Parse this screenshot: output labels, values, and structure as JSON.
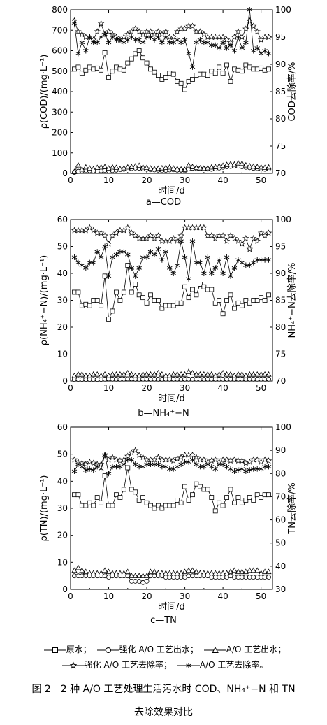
{
  "chart_data": [
    {
      "type": "line",
      "panel_label": "a—COD",
      "xlabel": "时间/d",
      "ylabel": "ρ(COD)/(mg·L⁻¹)",
      "y2label": "COD去除率/%",
      "xlim": [
        0,
        53
      ],
      "xticks": [
        0,
        10,
        20,
        30,
        40,
        50
      ],
      "ylim": [
        0,
        800
      ],
      "yticks": [
        0,
        100,
        200,
        300,
        400,
        500,
        600,
        700,
        800
      ],
      "y2lim": [
        70,
        100
      ],
      "y2ticks": [
        70,
        75,
        80,
        85,
        90,
        95,
        100
      ],
      "x": [
        1,
        2,
        3,
        4,
        5,
        6,
        7,
        8,
        9,
        10,
        11,
        12,
        13,
        14,
        15,
        16,
        17,
        18,
        19,
        20,
        21,
        22,
        23,
        24,
        25,
        26,
        27,
        28,
        29,
        30,
        31,
        32,
        33,
        34,
        35,
        36,
        37,
        38,
        39,
        40,
        41,
        42,
        43,
        44,
        45,
        46,
        47,
        48,
        49,
        50,
        51,
        52
      ],
      "series": [
        {
          "name": "原水",
          "axis": "left",
          "marker": "square",
          "values": [
            510,
            520,
            490,
            505,
            520,
            510,
            515,
            505,
            590,
            470,
            500,
            520,
            510,
            505,
            540,
            560,
            585,
            600,
            565,
            540,
            510,
            495,
            480,
            460,
            470,
            490,
            485,
            450,
            440,
            410,
            450,
            460,
            480,
            485,
            485,
            480,
            500,
            490,
            520,
            490,
            530,
            450,
            510,
            505,
            500,
            530,
            520,
            510,
            510,
            515,
            505,
            510
          ]
        },
        {
          "name": "强化A/O工艺出水",
          "axis": "left",
          "marker": "circle",
          "values": [
            5,
            10,
            12,
            14,
            13,
            12,
            11,
            13,
            15,
            12,
            14,
            16,
            18,
            20,
            22,
            24,
            26,
            25,
            22,
            20,
            18,
            17,
            16,
            14,
            15,
            17,
            18,
            16,
            15,
            14,
            22,
            25,
            24,
            23,
            22,
            21,
            20,
            22,
            26,
            30,
            32,
            34,
            36,
            35,
            32,
            30,
            28,
            25,
            24,
            22,
            20,
            22
          ]
        },
        {
          "name": "A/O工艺出水",
          "axis": "left",
          "marker": "triangle",
          "values": [
            8,
            40,
            20,
            30,
            25,
            22,
            28,
            30,
            32,
            25,
            30,
            28,
            22,
            26,
            30,
            32,
            35,
            38,
            30,
            28,
            25,
            22,
            24,
            26,
            28,
            30,
            25,
            22,
            20,
            18,
            40,
            32,
            28,
            26,
            24,
            26,
            30,
            32,
            36,
            38,
            42,
            46,
            44,
            50,
            48,
            40,
            36,
            34,
            32,
            30,
            28,
            30
          ]
        },
        {
          "name": "强化A/O工艺去除率",
          "axis": "right",
          "marker": "star",
          "values": [
            98,
            96,
            95.5,
            95,
            95,
            94.5,
            96,
            97.5,
            95.5,
            96,
            95.5,
            95,
            94.5,
            95,
            95.5,
            96,
            96.5,
            96,
            95.5,
            96,
            96,
            95.5,
            96,
            95.5,
            96,
            95,
            95,
            96,
            96.5,
            96.5,
            97,
            97,
            96,
            96,
            95.5,
            95,
            95,
            95,
            95,
            95,
            94.5,
            94,
            95,
            96,
            95,
            96.5,
            98,
            97,
            96,
            94.5,
            95,
            95
          ]
        },
        {
          "name": "A/O工艺去除率",
          "axis": "right",
          "marker": "asterisk",
          "values": [
            97.5,
            92,
            94,
            92.5,
            95,
            94,
            94,
            95,
            95.5,
            94,
            95,
            94.5,
            94.5,
            94,
            94.5,
            95,
            94.5,
            94.5,
            94,
            95,
            95,
            94.5,
            95,
            94,
            95,
            94,
            94,
            94.5,
            94,
            94.5,
            92,
            89.5,
            94,
            94.5,
            94,
            94,
            93.5,
            93.5,
            93,
            94,
            93,
            93.5,
            92.5,
            95,
            93,
            94,
            100,
            92.5,
            93,
            92,
            92.5,
            92
          ]
        }
      ]
    },
    {
      "type": "line",
      "panel_label": "b—NH₄⁺−N",
      "xlabel": "时间/d",
      "ylabel": "ρ(NH₄⁺−N)/(mg·L⁻¹)",
      "y2label": "NH₄⁺−N去除率/%",
      "xlim": [
        0,
        53
      ],
      "xticks": [
        0,
        10,
        20,
        30,
        40,
        50
      ],
      "ylim": [
        0,
        60
      ],
      "yticks": [
        0,
        10,
        20,
        30,
        40,
        50,
        60
      ],
      "y2lim": [
        70,
        100
      ],
      "y2ticks": [
        70,
        75,
        80,
        85,
        90,
        95,
        100
      ],
      "x": [
        1,
        2,
        3,
        4,
        5,
        6,
        7,
        8,
        9,
        10,
        11,
        12,
        13,
        14,
        15,
        16,
        17,
        18,
        19,
        20,
        21,
        22,
        23,
        24,
        25,
        26,
        27,
        28,
        29,
        30,
        31,
        32,
        33,
        34,
        35,
        36,
        37,
        38,
        39,
        40,
        41,
        42,
        43,
        44,
        45,
        46,
        47,
        48,
        49,
        50,
        51,
        52
      ],
      "series": [
        {
          "name": "原水",
          "axis": "left",
          "marker": "square",
          "values": [
            33,
            33,
            28,
            28.5,
            28,
            30,
            30,
            28,
            39,
            23,
            26,
            33,
            30,
            33,
            43,
            33,
            36,
            32,
            31,
            29,
            32,
            30,
            30,
            27,
            28,
            28,
            28,
            29,
            29,
            35,
            31,
            34,
            32,
            36,
            35,
            34,
            34,
            29,
            30,
            25,
            30,
            32,
            27,
            29,
            28,
            30,
            29,
            30,
            30,
            31,
            30,
            32
          ]
        },
        {
          "name": "强化A/O工艺出水",
          "axis": "left",
          "marker": "circle",
          "values": [
            0.6,
            0.6,
            0.6,
            0.6,
            0.6,
            0.6,
            0.6,
            0.6,
            0.7,
            0.8,
            0.7,
            0.7,
            0.7,
            0.7,
            0.8,
            0.8,
            0.7,
            0.7,
            0.7,
            0.7,
            0.7,
            0.7,
            0.7,
            0.7,
            0.7,
            0.7,
            0.7,
            0.7,
            0.7,
            0.7,
            0.7,
            0.7,
            0.7,
            0.7,
            0.7,
            0.7,
            0.7,
            0.7,
            0.7,
            0.7,
            0.7,
            0.7,
            0.7,
            0.7,
            0.7,
            0.7,
            0.7,
            0.7,
            0.7,
            0.7,
            0.7,
            0.7
          ]
        },
        {
          "name": "A/O工艺出水",
          "axis": "left",
          "marker": "triangle",
          "values": [
            2,
            2.5,
            2.5,
            2,
            2,
            2.5,
            2.5,
            2,
            2.5,
            2,
            2.5,
            2.5,
            2.5,
            2.5,
            3,
            2.5,
            2,
            2,
            2.5,
            2.5,
            2.5,
            2.5,
            3,
            2.5,
            2,
            2,
            2.5,
            2.5,
            2.5,
            2.5,
            3.5,
            3,
            2.5,
            2.5,
            2.5,
            2.5,
            2.5,
            2,
            2.5,
            3,
            2.5,
            2.5,
            2,
            2.5,
            2.5,
            2,
            2.5,
            2.5,
            2.5,
            2.5,
            2.5,
            2.5
          ]
        },
        {
          "name": "强化A/O工艺去除率",
          "axis": "right",
          "marker": "star",
          "values": [
            98,
            98,
            98,
            98,
            98.5,
            98,
            97.5,
            97.5,
            97,
            95.5,
            97,
            97.5,
            98,
            98,
            98.5,
            97.5,
            97,
            96.5,
            96.5,
            96.5,
            97,
            96.5,
            97,
            96,
            96,
            96,
            96.5,
            96,
            97,
            98.5,
            98.5,
            98.5,
            98.5,
            98.5,
            98.5,
            97,
            97,
            96.5,
            97,
            97,
            96,
            97,
            96.5,
            96,
            95.5,
            96.5,
            94.5,
            96.5,
            96,
            97.5,
            97,
            97.5
          ]
        },
        {
          "name": "A/O工艺去除率",
          "axis": "right",
          "marker": "asterisk",
          "values": [
            93,
            92,
            91.5,
            91,
            92,
            92,
            94,
            93,
            95,
            89.5,
            93,
            93.5,
            94,
            94,
            93.5,
            91,
            89.5,
            91,
            93,
            93,
            94,
            93.5,
            94.5,
            92.5,
            94,
            91,
            90,
            91.5,
            96,
            93,
            89,
            96,
            92,
            92,
            90,
            93,
            90,
            91,
            92.5,
            90,
            93,
            89.5,
            91,
            92.5,
            92,
            91.5,
            91.5,
            92,
            92.5,
            92.5,
            92.5,
            92.5
          ]
        }
      ]
    },
    {
      "type": "line",
      "panel_label": "c—TN",
      "xlabel": "时间/d",
      "ylabel": "ρ(TN)/(mg·L⁻¹)",
      "y2label": "TN去除率/%",
      "xlim": [
        0,
        53
      ],
      "xticks": [
        0,
        10,
        20,
        30,
        40,
        50
      ],
      "ylim": [
        0,
        60
      ],
      "yticks": [
        0,
        10,
        20,
        30,
        40,
        50,
        60
      ],
      "y2lim": [
        30,
        100
      ],
      "y2ticks": [
        30,
        40,
        50,
        60,
        70,
        80,
        90,
        100
      ],
      "x": [
        1,
        2,
        3,
        4,
        5,
        6,
        7,
        8,
        9,
        10,
        11,
        12,
        13,
        14,
        15,
        16,
        17,
        18,
        19,
        20,
        21,
        22,
        23,
        24,
        25,
        26,
        27,
        28,
        29,
        30,
        31,
        32,
        33,
        34,
        35,
        36,
        37,
        38,
        39,
        40,
        41,
        42,
        43,
        44,
        45,
        46,
        47,
        48,
        49,
        50,
        51,
        52
      ],
      "series": [
        {
          "name": "原水",
          "axis": "left",
          "marker": "square",
          "values": [
            35,
            35,
            31,
            31,
            32,
            31,
            34,
            32,
            42,
            31,
            31,
            35,
            34,
            37,
            45,
            37,
            36,
            33,
            34,
            32,
            31,
            30,
            31,
            30,
            31,
            31,
            31,
            33,
            32,
            38,
            33,
            35,
            39,
            38,
            37,
            37,
            34,
            29,
            32,
            31,
            34,
            37,
            32,
            34,
            32,
            33,
            34,
            33,
            35,
            34,
            35,
            35
          ]
        },
        {
          "name": "强化A/O工艺出水",
          "axis": "left",
          "marker": "circle",
          "values": [
            5,
            5,
            5,
            5,
            5,
            5,
            5,
            5,
            5,
            4.5,
            5,
            5,
            5,
            5,
            5,
            3,
            3,
            3,
            2.5,
            3,
            5,
            5,
            5,
            5,
            4.5,
            4.5,
            4.5,
            4.5,
            4.5,
            4.5,
            5,
            5,
            5,
            5,
            5,
            5,
            4.5,
            4.5,
            4.5,
            4.5,
            4.5,
            5,
            4.5,
            4.5,
            4.5,
            4.5,
            4.5,
            4.5,
            4.5,
            4.5,
            4.5,
            4.5
          ]
        },
        {
          "name": "A/O工艺出水",
          "axis": "left",
          "marker": "triangle",
          "values": [
            7,
            8,
            7,
            6.5,
            6,
            6,
            6,
            6,
            7,
            6.5,
            6,
            6,
            6,
            6,
            6.5,
            5,
            5,
            5,
            5,
            5,
            6.5,
            6.5,
            6,
            6,
            6,
            6,
            6,
            6,
            6,
            6.5,
            7,
            7,
            6.5,
            6,
            6,
            6,
            6,
            6,
            6,
            6,
            6,
            6.5,
            7,
            6.5,
            6.5,
            6.5,
            7,
            7,
            7,
            6,
            6.5,
            6.5
          ]
        },
        {
          "name": "强化A/O工艺去除率",
          "axis": "right",
          "marker": "star",
          "values": [
            86,
            85,
            84.5,
            84,
            85,
            84.5,
            84,
            84,
            88,
            86,
            87,
            86,
            85.5,
            86,
            87.5,
            89,
            90,
            88,
            87,
            86,
            86,
            86,
            87,
            86,
            86,
            86,
            85.5,
            86.5,
            87,
            88,
            88,
            88,
            87,
            86,
            86,
            85,
            85.5,
            86,
            85,
            86,
            86,
            85.5,
            86,
            85.5,
            85.5,
            84.5,
            85,
            86,
            86,
            85,
            86,
            85.5
          ]
        },
        {
          "name": "A/O工艺去除率",
          "axis": "right",
          "marker": "asterisk",
          "values": [
            81,
            84,
            83,
            81.5,
            82,
            81.5,
            83,
            82,
            88,
            80,
            83,
            83,
            83,
            84,
            86,
            86,
            84,
            83,
            83,
            84,
            84,
            84,
            84,
            83,
            83,
            82,
            82,
            83,
            84,
            85,
            85,
            86,
            84,
            83,
            83,
            84,
            83,
            82,
            84,
            84,
            83,
            82,
            81,
            81.5,
            82,
            81,
            81.5,
            82,
            82,
            82,
            83,
            83
          ]
        }
      ]
    }
  ],
  "legend": {
    "items": [
      {
        "label": "原水；",
        "marker": "square"
      },
      {
        "label": "强化 A/O 工艺出水；",
        "marker": "circle"
      },
      {
        "label": "A/O 工艺出水；",
        "marker": "triangle"
      },
      {
        "label": "强化 A/O 工艺去除率；",
        "marker": "star"
      },
      {
        "label": "A/O 工艺去除率。",
        "marker": "asterisk"
      }
    ]
  },
  "figure_caption": {
    "line1": "图 2　2 种 A/O 工艺处理生活污水时 COD、NH₄⁺−N 和 TN",
    "line2": "去除效果对比"
  }
}
